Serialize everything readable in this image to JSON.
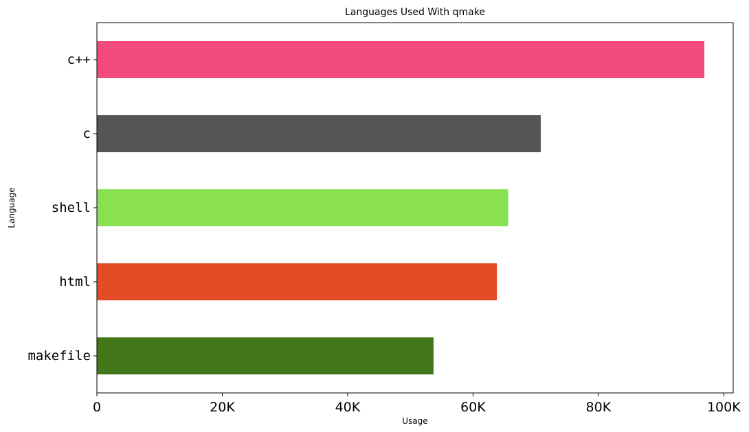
{
  "chart_data": {
    "type": "bar",
    "orientation": "horizontal",
    "title": "Languages Used With qmake",
    "xlabel": "Usage",
    "ylabel": "Language",
    "categories": [
      "makefile",
      "html",
      "shell",
      "c",
      "c++"
    ],
    "values": [
      53700,
      63800,
      65600,
      70800,
      96900
    ],
    "colors": [
      "#427819",
      "#e34c26",
      "#89e051",
      "#555555",
      "#f34b7d"
    ],
    "xlim": [
      0,
      101500
    ],
    "xticks": [
      0,
      20000,
      40000,
      60000,
      80000,
      100000
    ],
    "xtick_labels": [
      "0",
      "20K",
      "40K",
      "60K",
      "80K",
      "100K"
    ],
    "grid": false,
    "legend": "none"
  }
}
